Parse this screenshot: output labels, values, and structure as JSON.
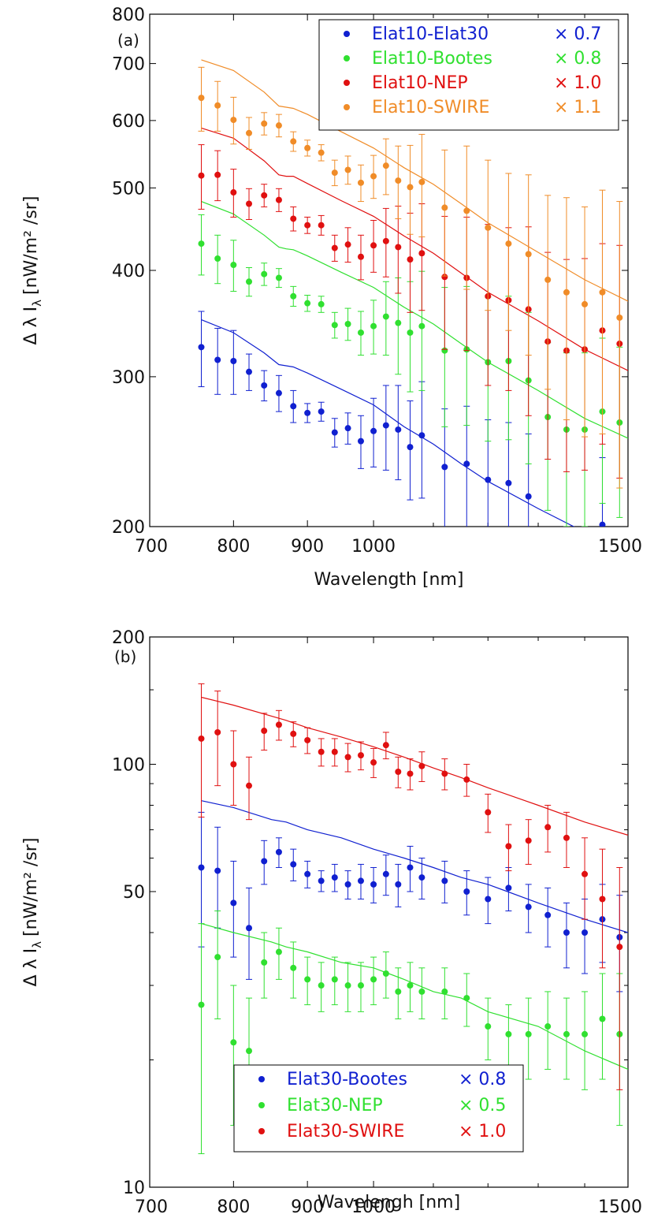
{
  "chart_data": [
    {
      "type": "scatter",
      "panel_label": "(a)",
      "xlabel": "Wavelength [nm]",
      "ylabel": "Δ λ I",
      "ylabel_sub": "λ",
      "ylabel_units": "[nW/m² /sr]",
      "xscale": "log",
      "yscale": "log",
      "xlim": [
        700,
        1500
      ],
      "ylim": [
        200,
        800
      ],
      "xticks": [
        700,
        800,
        900,
        1000,
        1500
      ],
      "xtick_labels": [
        "700",
        "800",
        "900",
        "1000",
        "1500"
      ],
      "yticks": [
        200,
        300,
        400,
        500,
        600,
        700,
        800
      ],
      "ytick_labels": [
        "200",
        "300",
        "400",
        "500",
        "600",
        "700",
        "800"
      ],
      "legend_position": "top-right",
      "x": [
        760,
        780,
        800,
        820,
        840,
        860,
        880,
        900,
        920,
        940,
        960,
        980,
        1000,
        1020,
        1040,
        1060,
        1080,
        1120,
        1160,
        1200,
        1240,
        1280,
        1320,
        1360,
        1400,
        1440,
        1480
      ],
      "series": [
        {
          "name": "Elat10-Elat30",
          "factor": "× 0.7",
          "color": "#1020d0",
          "values": [
            325,
            314,
            313,
            304,
            293,
            287,
            277,
            272,
            273,
            258,
            261,
            252,
            259,
            263,
            260,
            248,
            256,
            235,
            237,
            227,
            225,
            217,
            null,
            null,
            null,
            201,
            null
          ],
          "errors": [
            33,
            28,
            27,
            15,
            12,
            14,
            12,
            7,
            7,
            10,
            11,
            18,
            24,
            30,
            33,
            33,
            40,
            40,
            40,
            40,
            40,
            40,
            40,
            40,
            40,
            40,
            40
          ],
          "model_x": [
            760,
            800,
            840,
            860,
            870,
            880,
            900,
            950,
            1000,
            1050,
            1100,
            1150,
            1200,
            1300,
            1400,
            1500
          ],
          "model_y": [
            350,
            338,
            320,
            310,
            309,
            308,
            303,
            290,
            278,
            262,
            250,
            237,
            226,
            210,
            197,
            188
          ]
        },
        {
          "name": "Elat10-Bootes",
          "factor": "× 0.8",
          "color": "#30e030",
          "values": [
            430,
            413,
            406,
            388,
            396,
            392,
            373,
            366,
            365,
            345,
            346,
            338,
            344,
            353,
            347,
            338,
            344,
            322,
            323,
            312,
            313,
            297,
            269,
            260,
            260,
            273,
            265
          ],
          "errors": [
            35,
            27,
            28,
            15,
            12,
            10,
            10,
            8,
            8,
            12,
            15,
            20,
            25,
            35,
            45,
            50,
            55,
            60,
            60,
            60,
            60,
            60,
            60,
            60,
            60,
            60,
            60
          ],
          "model_x": [
            760,
            800,
            840,
            860,
            870,
            880,
            900,
            950,
            1000,
            1050,
            1100,
            1150,
            1200,
            1300,
            1400,
            1500
          ],
          "model_y": [
            482,
            466,
            440,
            426,
            424,
            423,
            416,
            398,
            382,
            362,
            346,
            328,
            312,
            289,
            268,
            254
          ]
        },
        {
          "name": "Elat10-NEP",
          "factor": "× 1.0",
          "color": "#e01010",
          "values": [
            517,
            518,
            494,
            479,
            490,
            484,
            460,
            452,
            452,
            425,
            429,
            415,
            428,
            433,
            426,
            412,
            419,
            393,
            392,
            373,
            369,
            360,
            330,
            322,
            323,
            340,
            328
          ],
          "errors": [
            45,
            35,
            32,
            20,
            15,
            15,
            15,
            10,
            12,
            15,
            20,
            25,
            30,
            40,
            50,
            55,
            60,
            70,
            70,
            80,
            80,
            90,
            90,
            90,
            90,
            90,
            100
          ],
          "model_x": [
            760,
            800,
            840,
            860,
            870,
            880,
            900,
            950,
            1000,
            1050,
            1100,
            1150,
            1200,
            1300,
            1400,
            1500
          ],
          "model_y": [
            588,
            572,
            538,
            518,
            516,
            516,
            506,
            483,
            463,
            439,
            419,
            397,
            377,
            349,
            323,
            305
          ]
        },
        {
          "name": "Elat10-SWIRE",
          "factor": "× 1.1",
          "color": "#f08c28",
          "values": [
            638,
            625,
            601,
            580,
            595,
            592,
            567,
            557,
            550,
            521,
            525,
            507,
            516,
            531,
            510,
            501,
            508,
            474,
            470,
            449,
            430,
            418,
            390,
            377,
            365,
            377,
            352
          ],
          "errors": [
            55,
            42,
            38,
            25,
            18,
            18,
            15,
            12,
            12,
            18,
            20,
            25,
            30,
            40,
            50,
            60,
            70,
            80,
            90,
            90,
            90,
            100,
            100,
            110,
            110,
            120,
            130
          ],
          "model_x": [
            760,
            800,
            840,
            860,
            870,
            880,
            900,
            950,
            1000,
            1050,
            1100,
            1150,
            1200,
            1300,
            1400,
            1500
          ],
          "model_y": [
            707,
            687,
            648,
            624,
            622,
            620,
            610,
            582,
            557,
            528,
            505,
            479,
            455,
            420,
            390,
            368
          ]
        }
      ]
    },
    {
      "type": "scatter",
      "panel_label": "(b)",
      "xlabel": "Wavelengh [nm]",
      "ylabel": "Δ λ I",
      "ylabel_sub": "λ",
      "ylabel_units": "[nW/m² /sr]",
      "xscale": "log",
      "yscale": "log",
      "xlim": [
        700,
        1500
      ],
      "ylim": [
        10,
        200
      ],
      "xticks": [
        700,
        800,
        900,
        1000,
        1500
      ],
      "xtick_labels": [
        "700",
        "800",
        "900",
        "1000",
        "1500"
      ],
      "yticks": [
        10,
        50,
        100,
        200
      ],
      "ytick_labels": [
        "10",
        "50",
        "100",
        "200"
      ],
      "legend_position": "bottom-center",
      "x": [
        760,
        780,
        800,
        820,
        840,
        860,
        880,
        900,
        920,
        940,
        960,
        980,
        1000,
        1020,
        1040,
        1060,
        1080,
        1120,
        1160,
        1200,
        1240,
        1280,
        1320,
        1360,
        1400,
        1440,
        1480
      ],
      "series": [
        {
          "name": "Elat30-Bootes",
          "factor": "× 0.8",
          "color": "#1020d0",
          "values": [
            57,
            56,
            47,
            41,
            59,
            62,
            58,
            55,
            53,
            54,
            52,
            53,
            52,
            55,
            52,
            57,
            54,
            53,
            50,
            48,
            51,
            46,
            44,
            40,
            40,
            43,
            39
          ],
          "errors": [
            20,
            15,
            12,
            10,
            7,
            5,
            5,
            4,
            3,
            4,
            4,
            5,
            5,
            6,
            6,
            7,
            6,
            6,
            6,
            6,
            6,
            6,
            7,
            7,
            8,
            9,
            10
          ],
          "model_x": [
            760,
            800,
            850,
            870,
            900,
            950,
            1000,
            1050,
            1100,
            1150,
            1200,
            1300,
            1400,
            1500
          ],
          "model_y": [
            82,
            79,
            74,
            73,
            70,
            67,
            63,
            60,
            57,
            54,
            52,
            47,
            43,
            40
          ]
        },
        {
          "name": "Elat30-NEP",
          "factor": "× 0.5",
          "color": "#30e030",
          "values": [
            27,
            35,
            22,
            21,
            34,
            36,
            33,
            31,
            30,
            31,
            30,
            30,
            31,
            32,
            29,
            30,
            29,
            29,
            28,
            24,
            23,
            23,
            24,
            23,
            23,
            25,
            23
          ],
          "errors": [
            15,
            10,
            8,
            7,
            6,
            5,
            5,
            4,
            4,
            4,
            4,
            4,
            4,
            4,
            4,
            4,
            4,
            4,
            4,
            4,
            4,
            5,
            5,
            5,
            6,
            7,
            9
          ],
          "model_x": [
            760,
            800,
            850,
            870,
            900,
            950,
            1000,
            1050,
            1100,
            1150,
            1200,
            1300,
            1400,
            1500
          ],
          "model_y": [
            42,
            40,
            38,
            37,
            36,
            34,
            33,
            31,
            29,
            28,
            26,
            24,
            21,
            19
          ]
        },
        {
          "name": "Elat30-SWIRE",
          "factor": "× 1.0",
          "color": "#e01010",
          "values": [
            115,
            119,
            100,
            89,
            120,
            124,
            118,
            114,
            107,
            107,
            104,
            105,
            101,
            111,
            96,
            95,
            99,
            95,
            92,
            77,
            64,
            66,
            71,
            67,
            55,
            48,
            37
          ],
          "errors": [
            40,
            30,
            20,
            15,
            12,
            10,
            8,
            8,
            8,
            8,
            8,
            8,
            8,
            8,
            8,
            8,
            8,
            8,
            8,
            8,
            8,
            8,
            9,
            10,
            12,
            15,
            20
          ],
          "model_x": [
            760,
            800,
            850,
            870,
            900,
            950,
            1000,
            1050,
            1100,
            1150,
            1200,
            1300,
            1400,
            1500
          ],
          "model_y": [
            144,
            138,
            130,
            127,
            122,
            116,
            110,
            104,
            98,
            93,
            88,
            80,
            73,
            68
          ]
        }
      ]
    }
  ]
}
